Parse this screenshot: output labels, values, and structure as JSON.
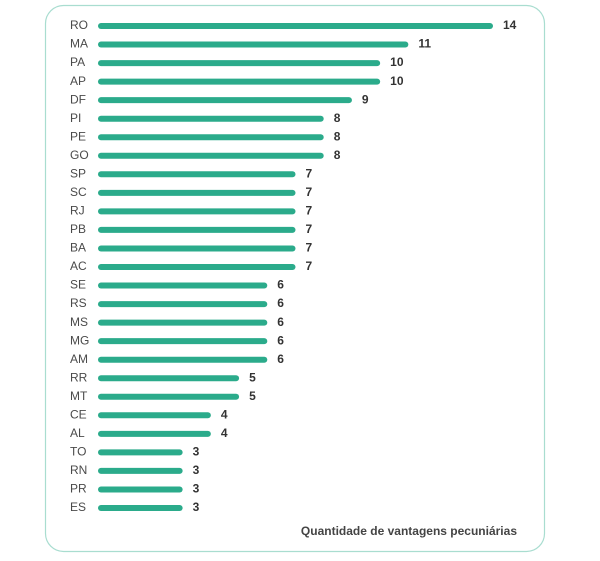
{
  "chart_data": {
    "type": "bar",
    "orientation": "horizontal",
    "categories": [
      "RO",
      "MA",
      "PA",
      "AP",
      "DF",
      "PI",
      "PE",
      "GO",
      "SP",
      "SC",
      "RJ",
      "PB",
      "BA",
      "AC",
      "SE",
      "RS",
      "MS",
      "MG",
      "AM",
      "RR",
      "MT",
      "CE",
      "AL",
      "TO",
      "RN",
      "PR",
      "ES"
    ],
    "values": [
      14,
      11,
      10,
      10,
      9,
      8,
      8,
      8,
      7,
      7,
      7,
      7,
      7,
      7,
      6,
      6,
      6,
      6,
      6,
      5,
      5,
      4,
      4,
      3,
      3,
      3,
      3
    ],
    "color": "#2bab8b",
    "xlabel": "Quantidade de vantagens pecuniárias"
  }
}
